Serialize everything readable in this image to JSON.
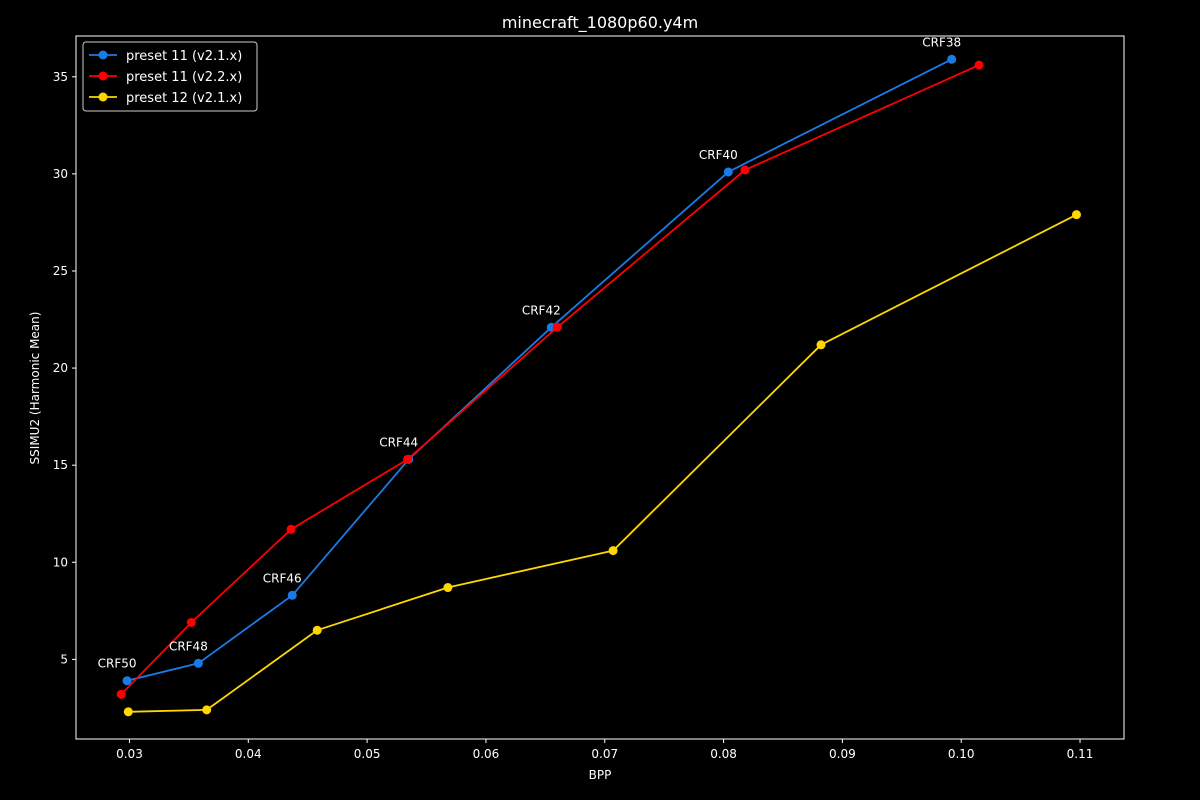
{
  "chart_data": {
    "type": "line",
    "title": "minecraft_1080p60.y4m",
    "xlabel": "BPP",
    "ylabel": "SSIMU2 (Harmonic Mean)",
    "xlim": [
      0.0255,
      0.1137
    ],
    "ylim": [
      0.9,
      37.1
    ],
    "xticks": [
      0.03,
      0.04,
      0.05,
      0.06,
      0.07,
      0.08,
      0.09,
      0.1,
      0.11
    ],
    "xtick_labels": [
      "0.03",
      "0.04",
      "0.05",
      "0.06",
      "0.07",
      "0.08",
      "0.09",
      "0.10",
      "0.11"
    ],
    "yticks": [
      5,
      10,
      15,
      20,
      25,
      30,
      35
    ],
    "ytick_labels": [
      "5",
      "10",
      "15",
      "20",
      "25",
      "30",
      "35"
    ],
    "grid": false,
    "legend_position": "top-left",
    "series": [
      {
        "name": "preset 11 (v2.1.x)",
        "color": "#1a7be6",
        "x": [
          0.0298,
          0.0358,
          0.0437,
          0.0535,
          0.0655,
          0.0804,
          0.0992
        ],
        "y": [
          3.9,
          4.8,
          8.3,
          15.3,
          22.1,
          30.1,
          35.9
        ]
      },
      {
        "name": "preset 11 (v2.2.x)",
        "color": "#ff0000",
        "x": [
          0.0293,
          0.0352,
          0.0436,
          0.0534,
          0.066,
          0.0818,
          0.1015
        ],
        "y": [
          3.2,
          6.9,
          11.7,
          15.3,
          22.1,
          30.2,
          35.6
        ]
      },
      {
        "name": "preset 12 (v2.1.x)",
        "color": "#ffd700",
        "x": [
          0.0299,
          0.0365,
          0.0458,
          0.0568,
          0.0707,
          0.0882,
          0.1097
        ],
        "y": [
          2.3,
          2.4,
          6.5,
          8.7,
          10.6,
          21.2,
          27.9
        ]
      }
    ],
    "annotations": [
      {
        "text": "CRF50",
        "x": 0.0298,
        "y": 3.9
      },
      {
        "text": "CRF48",
        "x": 0.0358,
        "y": 4.8
      },
      {
        "text": "CRF46",
        "x": 0.0437,
        "y": 8.3
      },
      {
        "text": "CRF44",
        "x": 0.0535,
        "y": 15.3
      },
      {
        "text": "CRF42",
        "x": 0.0655,
        "y": 22.1
      },
      {
        "text": "CRF40",
        "x": 0.0804,
        "y": 30.1
      },
      {
        "text": "CRF38",
        "x": 0.0992,
        "y": 35.9
      }
    ]
  }
}
